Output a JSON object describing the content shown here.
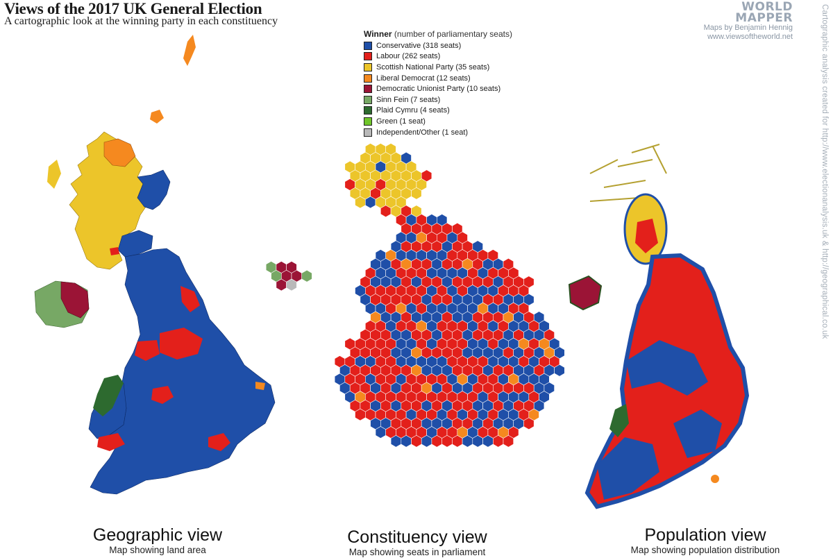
{
  "header": {
    "title": "Views of the 2017 UK General Election",
    "subtitle": "A cartographic look at the winning party in each constituency"
  },
  "brand": {
    "logo_line1": "WORLD",
    "logo_line2": "MAPPER",
    "author": "Maps by Benjamin Hennig",
    "site": "www.viewsoftheworld.net"
  },
  "credit": "Cartographic analysis created for http://www.electionanalysis.uk & http://geographical.co.uk",
  "legend": {
    "title": "Winner",
    "note": "(number of parliamentary seats)",
    "items": [
      {
        "label": "Conservative (318 seats)",
        "color": "#1f4fa8"
      },
      {
        "label": "Labour (262 seats)",
        "color": "#e3201b"
      },
      {
        "label": "Scottish National Party (35 seats)",
        "color": "#ecc52a"
      },
      {
        "label": "Liberal Democrat (12 seats)",
        "color": "#f5891f"
      },
      {
        "label": "Democratic Unionist Party (10 seats)",
        "color": "#9b1436"
      },
      {
        "label": "Sinn Fein (7 seats)",
        "color": "#77a865"
      },
      {
        "label": "Plaid Cymru (4 seats)",
        "color": "#2d6a2f"
      },
      {
        "label": "Green (1 seat)",
        "color": "#6fc52a"
      },
      {
        "label": "Independent/Other (1 seat)",
        "color": "#b9b9b9"
      }
    ]
  },
  "views": {
    "geographic": {
      "title": "Geographic view",
      "desc": "Map showing land area"
    },
    "constituency": {
      "title": "Constituency view",
      "desc": "Map showing seats in parliament"
    },
    "population": {
      "title": "Population view",
      "desc": "Map showing population distribution"
    }
  }
}
